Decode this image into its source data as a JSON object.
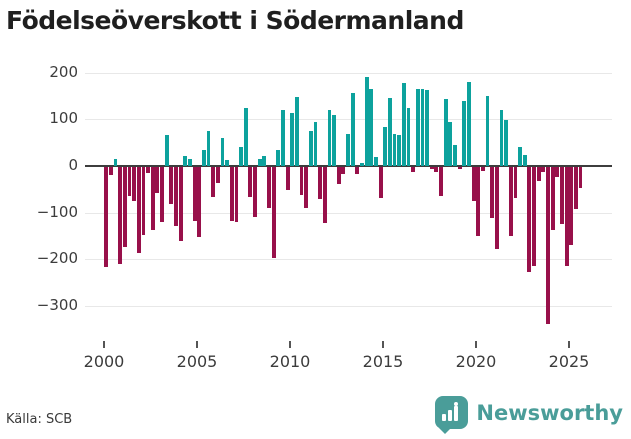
{
  "title": "Födelseöverskott i Södermanland",
  "source": {
    "label": "Källa: SCB"
  },
  "branding": {
    "name": "Newsworthy",
    "logo_color": "#4a9d99"
  },
  "colors": {
    "positive": "#0da29d",
    "negative": "#98104a",
    "zero_line": "#3d3d3d",
    "gridline": "#e8e8e8",
    "axis_text": "#3c3c3c",
    "title_text": "#1f1f1f"
  },
  "chart_data": {
    "type": "bar",
    "title": "Födelseöverskott i Södermanland",
    "xlabel": "",
    "ylabel": "",
    "periodicity": "quarterly",
    "start_period": "2000-Q1",
    "end_period": "2025-Q3",
    "ylim": [
      -360,
      220
    ],
    "grid": true,
    "legend": "none",
    "y_ticks": [
      200,
      100,
      0,
      -100,
      -200,
      -300
    ],
    "y_tick_labels": [
      "200",
      "100",
      "0",
      "−100",
      "−200",
      "−300"
    ],
    "x_tick_years": [
      2000,
      2005,
      2010,
      2015,
      2020,
      2025
    ],
    "x_tick_labels": [
      "2000",
      "2005",
      "2010",
      "2015",
      "2020",
      "2025"
    ],
    "series": [
      {
        "name": "Födelseöverskott",
        "points": [
          {
            "t": "2000-Q1",
            "v": -215
          },
          {
            "t": "2000-Q2",
            "v": -18
          },
          {
            "t": "2000-Q3",
            "v": 16
          },
          {
            "t": "2000-Q4",
            "v": -207
          },
          {
            "t": "2001-Q1",
            "v": -171
          },
          {
            "t": "2001-Q2",
            "v": -62
          },
          {
            "t": "2001-Q3",
            "v": -73
          },
          {
            "t": "2001-Q4",
            "v": -185
          },
          {
            "t": "2002-Q1",
            "v": -145
          },
          {
            "t": "2002-Q2",
            "v": -12
          },
          {
            "t": "2002-Q3",
            "v": -134
          },
          {
            "t": "2002-Q4",
            "v": -55
          },
          {
            "t": "2003-Q1",
            "v": -118
          },
          {
            "t": "2003-Q2",
            "v": 66
          },
          {
            "t": "2003-Q3",
            "v": -79
          },
          {
            "t": "2003-Q4",
            "v": -126
          },
          {
            "t": "2004-Q1",
            "v": -159
          },
          {
            "t": "2004-Q2",
            "v": 22
          },
          {
            "t": "2004-Q3",
            "v": 16
          },
          {
            "t": "2004-Q4",
            "v": -115
          },
          {
            "t": "2005-Q1",
            "v": -151
          },
          {
            "t": "2005-Q2",
            "v": 34
          },
          {
            "t": "2005-Q3",
            "v": 74
          },
          {
            "t": "2005-Q4",
            "v": -64
          },
          {
            "t": "2006-Q1",
            "v": -34
          },
          {
            "t": "2006-Q2",
            "v": 61
          },
          {
            "t": "2006-Q3",
            "v": 13
          },
          {
            "t": "2006-Q4",
            "v": -116
          },
          {
            "t": "2007-Q1",
            "v": -118
          },
          {
            "t": "2007-Q2",
            "v": 40
          },
          {
            "t": "2007-Q3",
            "v": 125
          },
          {
            "t": "2007-Q4",
            "v": -64
          },
          {
            "t": "2008-Q1",
            "v": -107
          },
          {
            "t": "2008-Q2",
            "v": 14
          },
          {
            "t": "2008-Q3",
            "v": 21
          },
          {
            "t": "2008-Q4",
            "v": -87
          },
          {
            "t": "2009-Q1",
            "v": -194
          },
          {
            "t": "2009-Q2",
            "v": 34
          },
          {
            "t": "2009-Q3",
            "v": 120
          },
          {
            "t": "2009-Q4",
            "v": -50
          },
          {
            "t": "2010-Q1",
            "v": 113
          },
          {
            "t": "2010-Q2",
            "v": 147
          },
          {
            "t": "2010-Q3",
            "v": -60
          },
          {
            "t": "2010-Q4",
            "v": -87
          },
          {
            "t": "2011-Q1",
            "v": 75
          },
          {
            "t": "2011-Q2",
            "v": 95
          },
          {
            "t": "2011-Q3",
            "v": -69
          },
          {
            "t": "2011-Q4",
            "v": -119
          },
          {
            "t": "2012-Q1",
            "v": 120
          },
          {
            "t": "2012-Q2",
            "v": 110
          },
          {
            "t": "2012-Q3",
            "v": -36
          },
          {
            "t": "2012-Q4",
            "v": -16
          },
          {
            "t": "2013-Q1",
            "v": 69
          },
          {
            "t": "2013-Q2",
            "v": 156
          },
          {
            "t": "2013-Q3",
            "v": -14
          },
          {
            "t": "2013-Q4",
            "v": 7
          },
          {
            "t": "2014-Q1",
            "v": 191
          },
          {
            "t": "2014-Q2",
            "v": 164
          },
          {
            "t": "2014-Q3",
            "v": 20
          },
          {
            "t": "2014-Q4",
            "v": -66
          },
          {
            "t": "2015-Q1",
            "v": 84
          },
          {
            "t": "2015-Q2",
            "v": 146
          },
          {
            "t": "2015-Q3",
            "v": 68
          },
          {
            "t": "2015-Q4",
            "v": 66
          },
          {
            "t": "2016-Q1",
            "v": 178
          },
          {
            "t": "2016-Q2",
            "v": 124
          },
          {
            "t": "2016-Q3",
            "v": -11
          },
          {
            "t": "2016-Q4",
            "v": 166
          },
          {
            "t": "2017-Q1",
            "v": 165
          },
          {
            "t": "2017-Q2",
            "v": 163
          },
          {
            "t": "2017-Q3",
            "v": -5
          },
          {
            "t": "2017-Q4",
            "v": -10
          },
          {
            "t": "2018-Q1",
            "v": -62
          },
          {
            "t": "2018-Q2",
            "v": 143
          },
          {
            "t": "2018-Q3",
            "v": 95
          },
          {
            "t": "2018-Q4",
            "v": 46
          },
          {
            "t": "2019-Q1",
            "v": -5
          },
          {
            "t": "2019-Q2",
            "v": 140
          },
          {
            "t": "2019-Q3",
            "v": 180
          },
          {
            "t": "2019-Q4",
            "v": -73
          },
          {
            "t": "2020-Q1",
            "v": -148
          },
          {
            "t": "2020-Q2",
            "v": -8
          },
          {
            "t": "2020-Q3",
            "v": 149
          },
          {
            "t": "2020-Q4",
            "v": -109
          },
          {
            "t": "2021-Q1",
            "v": -176
          },
          {
            "t": "2021-Q2",
            "v": 121
          },
          {
            "t": "2021-Q3",
            "v": 99
          },
          {
            "t": "2021-Q4",
            "v": -148
          },
          {
            "t": "2022-Q1",
            "v": -66
          },
          {
            "t": "2022-Q2",
            "v": 40
          },
          {
            "t": "2022-Q3",
            "v": 24
          },
          {
            "t": "2022-Q4",
            "v": -225
          },
          {
            "t": "2023-Q1",
            "v": -212
          },
          {
            "t": "2023-Q2",
            "v": -29
          },
          {
            "t": "2023-Q3",
            "v": -10
          },
          {
            "t": "2023-Q4",
            "v": -337
          },
          {
            "t": "2024-Q1",
            "v": -134
          },
          {
            "t": "2024-Q2",
            "v": -21
          },
          {
            "t": "2024-Q3",
            "v": -123
          },
          {
            "t": "2024-Q4",
            "v": -212
          },
          {
            "t": "2025-Q1",
            "v": -168
          },
          {
            "t": "2025-Q2",
            "v": -90
          },
          {
            "t": "2025-Q3",
            "v": -45
          }
        ]
      }
    ]
  }
}
